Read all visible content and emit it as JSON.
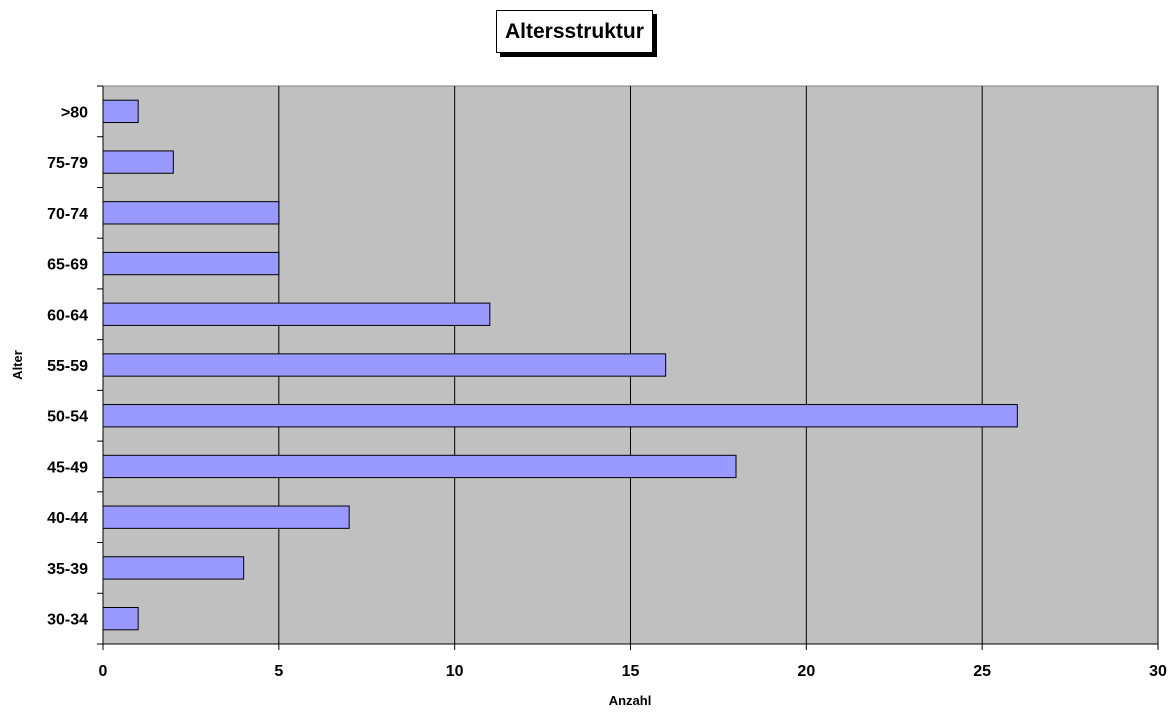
{
  "chart_data": {
    "type": "bar",
    "orientation": "horizontal",
    "title": "Altersstruktur",
    "xlabel": "Anzahl",
    "ylabel": "Alter",
    "categories": [
      "30-34",
      "35-39",
      "40-44",
      "45-49",
      "50-54",
      "55-59",
      "60-64",
      "65-69",
      "70-74",
      "75-79",
      ">80"
    ],
    "values": [
      1,
      4,
      7,
      18,
      26,
      16,
      11,
      5,
      5,
      2,
      1
    ],
    "xlim": [
      0,
      30
    ],
    "xticks": [
      "0",
      "5",
      "10",
      "15",
      "20",
      "25",
      "30"
    ],
    "grid": "vertical",
    "legend": "none"
  },
  "colors": {
    "plot_background": "#c0c0c0",
    "bar_fill": "#9999ff",
    "bar_stroke": "#000000",
    "gridline": "#000000"
  }
}
